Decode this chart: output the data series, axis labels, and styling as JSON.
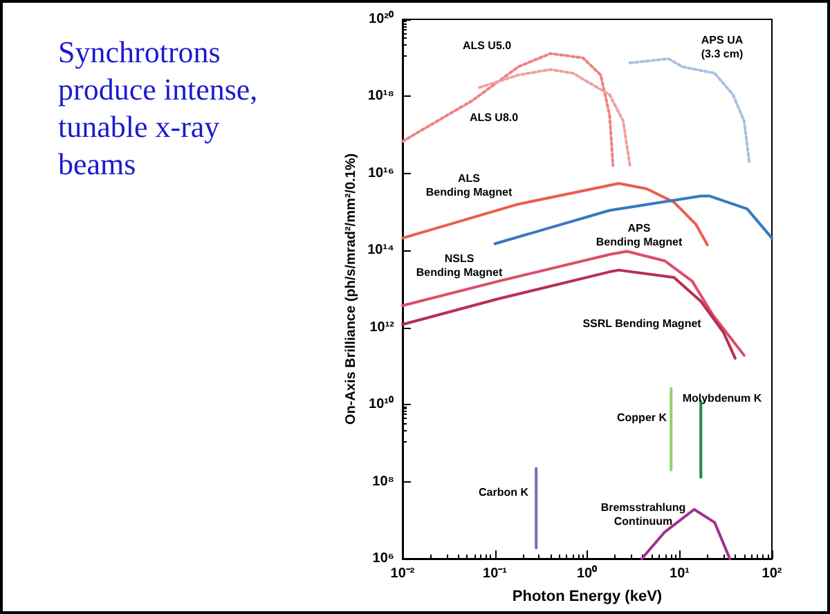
{
  "chart_data": {
    "type": "line",
    "title": "Synchrotrons produce intense, tunable x-ray beams",
    "xlabel": "Photon Energy (keV)",
    "ylabel": "On-Axis Brilliance (ph/s/mrad²/mm²/0.1%)",
    "log": "xy",
    "marker": "none",
    "xlim": [
      0.01,
      100
    ],
    "ylim": [
      1000000.0,
      1e+20
    ],
    "xticks": [
      {
        "value": 0.01,
        "label": "10⁻²"
      },
      {
        "value": 0.1,
        "label": "10⁻¹"
      },
      {
        "value": 1,
        "label": "10⁰"
      },
      {
        "value": 10,
        "label": "10¹"
      },
      {
        "value": 100,
        "label": "10²"
      }
    ],
    "yticks": [
      {
        "value": 1000000.0,
        "label": "10⁶"
      },
      {
        "value": 100000000.0,
        "label": "10⁸"
      },
      {
        "value": 10000000000.0,
        "label": "10¹⁰"
      },
      {
        "value": 1000000000000.0,
        "label": "10¹²"
      },
      {
        "value": 100000000000000.0,
        "label": "10¹⁴"
      },
      {
        "value": 1e+16,
        "label": "10¹⁶"
      },
      {
        "value": 1e+18,
        "label": "10¹⁸"
      },
      {
        "value": 1e+20,
        "label": "10²⁰"
      }
    ],
    "series": [
      {
        "color": "#f08080",
        "line_style": "dotted",
        "x": [
          0.01,
          0.057,
          0.18,
          0.4,
          0.9,
          1.4,
          1.75,
          1.9
        ],
        "values": [
          6.8e+16,
          7.8e+17,
          5.9e+18,
          1.3e+19,
          1e+19,
          3.6e+18,
          3.2e+17,
          1.6e+16
        ]
      },
      {
        "color": "#f0a0a0",
        "line_style": "dotted",
        "x": [
          0.068,
          0.18,
          0.4,
          0.7,
          1.75,
          2.45,
          2.9
        ],
        "values": [
          1.7e+18,
          3.6e+18,
          5e+18,
          4e+18,
          1.1e+18,
          2.3e+17,
          1.6e+16
        ]
      },
      {
        "color": "#a8c0e0",
        "line_style": "dotted",
        "x": [
          2.9,
          7.6,
          10.7,
          24,
          38,
          50,
          57
        ],
        "values": [
          7.4e+18,
          9.5e+18,
          5.9e+18,
          4e+18,
          1.1e+18,
          2.3e+17,
          1.9e+16
        ]
      },
      {
        "color": "#e8604a",
        "line_style": "solid",
        "x": [
          0.01,
          0.18,
          2.2,
          4.4,
          8.7,
          15,
          20
        ],
        "values": [
          210000000000000.0,
          1600000000000000.0,
          5500000000000000.0,
          4000000000000000.0,
          1800000000000000.0,
          480000000000000.0,
          140000000000000.0
        ]
      },
      {
        "color": "#3a78c0",
        "line_style": "solid",
        "x": [
          0.1,
          1.75,
          17,
          21,
          54,
          100
        ],
        "values": [
          150000000000000.0,
          1100000000000000.0,
          2600000000000000.0,
          2600000000000000.0,
          1200000000000000.0,
          210000000000000.0
        ]
      },
      {
        "color": "#d8506a",
        "line_style": "solid",
        "x": [
          0.01,
          0.11,
          1.75,
          2.7,
          6.9,
          13.7,
          23,
          50
        ],
        "values": [
          3700000000000.0,
          16000000000000.0,
          79000000000000.0,
          95000000000000.0,
          54000000000000.0,
          16000000000000.0,
          2100000000000.0,
          190000000000.0
        ]
      },
      {
        "color": "#b83050",
        "line_style": "solid",
        "x": [
          0.01,
          0.11,
          1.75,
          2.2,
          8.7,
          17,
          30,
          40
        ],
        "values": [
          1200000000000.0,
          5600000000000.0,
          28000000000000.0,
          31000000000000.0,
          20000000000000.0,
          4800000000000.0,
          740000000000.0,
          160000000000.0
        ]
      },
      {
        "color": "#7070b0",
        "line_style": "solid",
        "x": [
          0.28,
          0.28
        ],
        "values": [
          220000000.0,
          1900000.0
        ]
      },
      {
        "color": "#90d070",
        "line_style": "solid",
        "x": [
          8.1,
          8.1
        ],
        "values": [
          26000000000.0,
          200000000.0
        ]
      },
      {
        "color": "#1f8a4a",
        "line_style": "solid",
        "x": [
          17,
          17
        ],
        "values": [
          12000000000.0,
          130000000.0
        ]
      },
      {
        "color": "#a03090",
        "line_style": "solid",
        "x": [
          3.9,
          6.9,
          14.4,
          24,
          35
        ],
        "values": [
          1000000.0,
          4900000.0,
          19000000.0,
          8700000.0,
          1000000.0
        ]
      }
    ],
    "annotations": [
      "ALS U5.0",
      "ALS U8.0",
      "APS UA\n(3.3 cm)",
      "ALS\nBending Magnet",
      "APS\nBending Magnet",
      "NSLS\nBending Magnet",
      "SSRL Bending Magnet",
      "Carbon K",
      "Copper K",
      "Molybdenum K",
      "Bremsstrahlung\nContinuum"
    ]
  }
}
